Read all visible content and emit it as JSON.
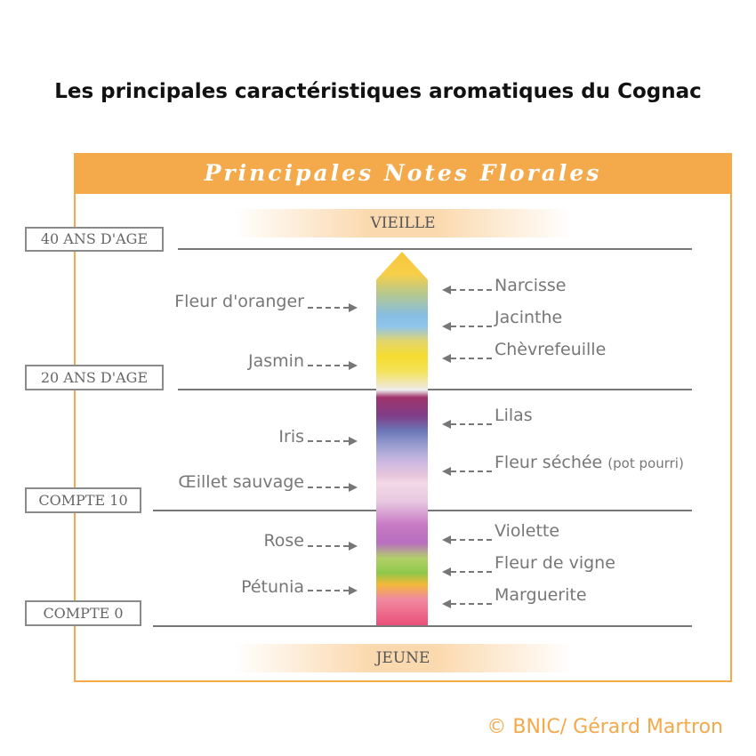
{
  "title": "Les principales caractéristiques aromatiques du Cognac",
  "panel": {
    "header": "Principales Notes Florales",
    "top_label": "VIEILLE",
    "bottom_label": "JEUNE"
  },
  "age_markers": [
    {
      "label": "40 ANS D'AGE"
    },
    {
      "label": "20 ANS D'AGE"
    },
    {
      "label": "COMPTE 10"
    },
    {
      "label": "COMPTE 0"
    }
  ],
  "left_notes": [
    {
      "label": "Fleur d'oranger"
    },
    {
      "label": "Jasmin"
    },
    {
      "label": "Iris"
    },
    {
      "label": "Œillet sauvage"
    },
    {
      "label": "Rose"
    },
    {
      "label": "Pétunia"
    }
  ],
  "right_notes": [
    {
      "label": "Narcisse"
    },
    {
      "label": "Jacinthe"
    },
    {
      "label": "Chèvrefeuille"
    },
    {
      "label": "Lilas"
    },
    {
      "label": "Fleur séchée",
      "sub": "(pot pourri)"
    },
    {
      "label": "Violette"
    },
    {
      "label": "Fleur de vigne"
    },
    {
      "label": "Marguerite"
    }
  ],
  "credit": "© BNIC/ Gérard Martron",
  "colors": {
    "accent": "#f4a94a",
    "title": "#111111",
    "text": "#777777"
  }
}
